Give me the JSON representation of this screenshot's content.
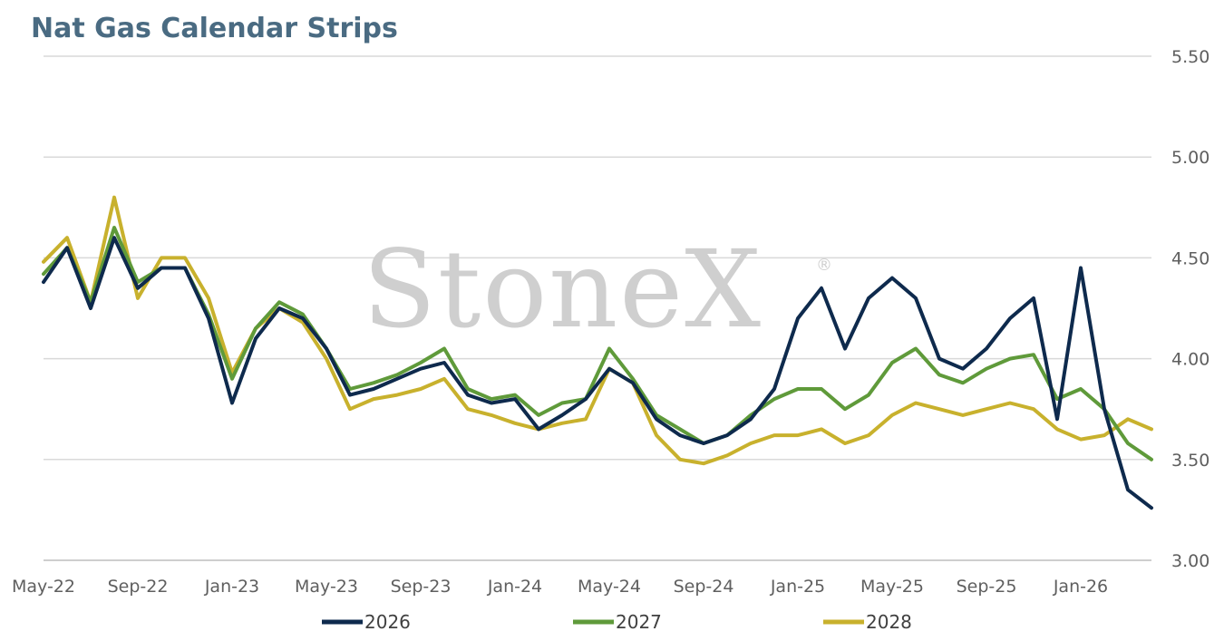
{
  "chart_data": {
    "type": "line",
    "title": "Nat Gas Calendar Strips",
    "watermark": "StoneX",
    "watermark_mark": "®",
    "x_tick_labels": [
      "May-22",
      "Sep-22",
      "Jan-23",
      "May-23",
      "Sep-23",
      "Jan-24",
      "May-24",
      "Sep-24",
      "Jan-25",
      "May-25",
      "Sep-25",
      "Jan-26"
    ],
    "y_tick_labels": [
      "5.50",
      "5.00",
      "4.50",
      "4.00",
      "3.50",
      "3.00"
    ],
    "ylim": [
      3.0,
      5.5
    ],
    "y_axis_side": "right",
    "grid": "horizontal",
    "legend_position": "bottom",
    "x": [
      "2022-05",
      "2022-06",
      "2022-07",
      "2022-08",
      "2022-09",
      "2022-10",
      "2022-11",
      "2022-12",
      "2023-01",
      "2023-02",
      "2023-03",
      "2023-04",
      "2023-05",
      "2023-06",
      "2023-07",
      "2023-08",
      "2023-09",
      "2023-10",
      "2023-11",
      "2023-12",
      "2024-01",
      "2024-02",
      "2024-03",
      "2024-04",
      "2024-05",
      "2024-06",
      "2024-07",
      "2024-08",
      "2024-09",
      "2024-10",
      "2024-11",
      "2024-12",
      "2025-01",
      "2025-02",
      "2025-03",
      "2025-04",
      "2025-05",
      "2025-06",
      "2025-07",
      "2025-08",
      "2025-09",
      "2025-10",
      "2025-11",
      "2025-12",
      "2026-01",
      "2026-02",
      "2026-03",
      "2026-04"
    ],
    "series": [
      {
        "name": "2026",
        "color": "#0e2a4d",
        "values": [
          4.38,
          4.55,
          4.25,
          4.6,
          4.35,
          4.45,
          4.45,
          4.2,
          3.78,
          4.1,
          4.25,
          4.2,
          4.05,
          3.82,
          3.85,
          3.9,
          3.95,
          3.98,
          3.82,
          3.78,
          3.8,
          3.65,
          3.72,
          3.8,
          3.95,
          3.88,
          3.7,
          3.62,
          3.58,
          3.62,
          3.7,
          3.85,
          4.2,
          4.35,
          4.05,
          4.3,
          4.4,
          4.3,
          4.0,
          3.95,
          4.05,
          4.2,
          4.3,
          3.7,
          4.45,
          3.75,
          3.35,
          3.26
        ]
      },
      {
        "name": "2027",
        "color": "#5f9a3a",
        "values": [
          4.42,
          4.55,
          4.28,
          4.65,
          4.38,
          4.45,
          4.45,
          4.22,
          3.9,
          4.15,
          4.28,
          4.22,
          4.05,
          3.85,
          3.88,
          3.92,
          3.98,
          4.05,
          3.85,
          3.8,
          3.82,
          3.72,
          3.78,
          3.8,
          4.05,
          3.9,
          3.72,
          3.65,
          3.58,
          3.62,
          3.72,
          3.8,
          3.85,
          3.85,
          3.75,
          3.82,
          3.98,
          4.05,
          3.92,
          3.88,
          3.95,
          4.0,
          4.02,
          3.8,
          3.85,
          3.75,
          3.58,
          3.5
        ]
      },
      {
        "name": "2028",
        "color": "#c8b12d",
        "values": [
          4.48,
          4.6,
          4.28,
          4.8,
          4.3,
          4.5,
          4.5,
          4.3,
          3.93,
          4.15,
          4.25,
          4.18,
          4.0,
          3.75,
          3.8,
          3.82,
          3.85,
          3.9,
          3.75,
          3.72,
          3.68,
          3.65,
          3.68,
          3.7,
          3.95,
          3.88,
          3.62,
          3.5,
          3.48,
          3.52,
          3.58,
          3.62,
          3.62,
          3.65,
          3.58,
          3.62,
          3.72,
          3.78,
          3.75,
          3.72,
          3.75,
          3.78,
          3.75,
          3.65,
          3.6,
          3.62,
          3.7,
          3.65
        ]
      }
    ]
  }
}
